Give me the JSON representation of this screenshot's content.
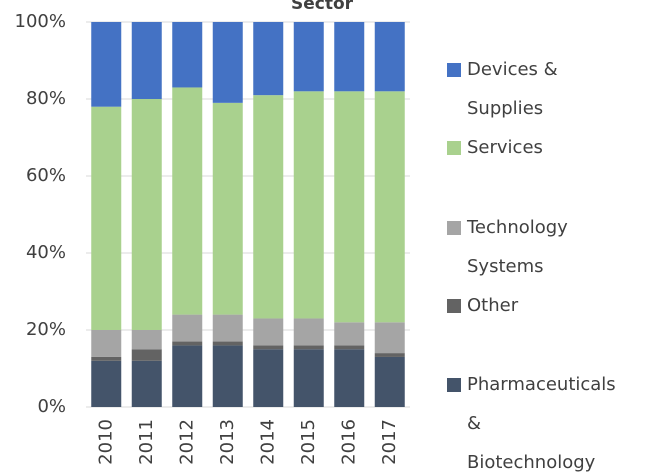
{
  "chart_data": {
    "type": "stacked_bar",
    "title": "Sector",
    "categories": [
      "2010",
      "2011",
      "2012",
      "2013",
      "2014",
      "2015",
      "2016",
      "2017"
    ],
    "series": [
      {
        "name": "Pharmaceuticals & Biotechnology",
        "color": "#44546a",
        "values": [
          12,
          12,
          16,
          16,
          15,
          15,
          15,
          13
        ]
      },
      {
        "name": "Other",
        "color": "#636363",
        "values": [
          1,
          3,
          1,
          1,
          1,
          1,
          1,
          1
        ]
      },
      {
        "name": "Technology Systems",
        "color": "#a5a5a5",
        "values": [
          7,
          5,
          7,
          7,
          7,
          7,
          6,
          8
        ]
      },
      {
        "name": "Services",
        "color": "#a9d18e",
        "values": [
          58,
          60,
          59,
          55,
          58,
          59,
          60,
          60
        ]
      },
      {
        "name": "Devices & Supplies",
        "color": "#4472c4",
        "values": [
          22,
          20,
          17,
          21,
          19,
          18,
          18,
          18
        ]
      }
    ],
    "ylim": [
      0,
      100
    ],
    "yticks": [
      {
        "value": 0,
        "label": "0%"
      },
      {
        "value": 20,
        "label": "20%"
      },
      {
        "value": 40,
        "label": "40%"
      },
      {
        "value": 60,
        "label": "60%"
      },
      {
        "value": 80,
        "label": "80%"
      },
      {
        "value": 100,
        "label": "100%"
      }
    ],
    "grid": true,
    "legend": "right"
  }
}
